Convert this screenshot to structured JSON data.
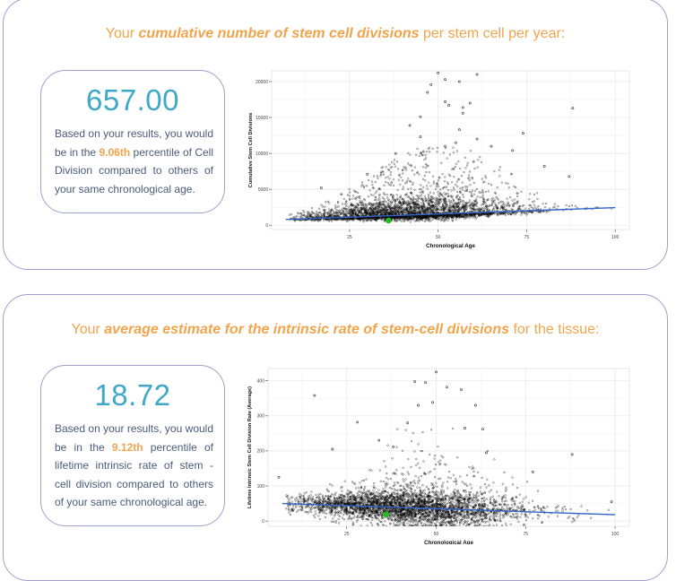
{
  "section1": {
    "heading_pre": "Your ",
    "heading_bold": "cumulative number of stem cell divisions",
    "heading_post": " per stem cell per year:",
    "value": "657.00",
    "text_pre": "Based on your results, you would be in the ",
    "percentile": "9.06th",
    "text_post": " percentile of Cell Division compared to others of your same chronological age."
  },
  "section2": {
    "heading_pre": "Your ",
    "heading_bold": "average estimate for the intrinsic rate of stem-cell divisions",
    "heading_post": " for the tissue:",
    "value": "18.72",
    "text_pre": "Based on your results, you would be in the ",
    "percentile": "9.12th",
    "text_post": " percentile of lifetime intrinsic rate of stem - cell division compared to others of your same chronological age."
  },
  "colors": {
    "accent_orange": "#f0a44c",
    "value_blue": "#3fa8c8",
    "trend_line": "#3366cc",
    "user_point": "#22bb22",
    "border": "#9aa2cc"
  },
  "chart_data": [
    {
      "type": "scatter",
      "title": "",
      "xlabel": "Chronological Age",
      "ylabel": "Cumulative Stem Cell Divisions",
      "xlim": [
        3,
        104
      ],
      "ylim": [
        -600,
        21500
      ],
      "xticks": [
        25,
        50,
        75,
        100
      ],
      "yticks": [
        0,
        5000,
        10000,
        15000,
        20000
      ],
      "grid": true,
      "trend_line": {
        "x": [
          7,
          100
        ],
        "y": [
          800,
          2450
        ]
      },
      "user_point": {
        "x": 36,
        "y": 657
      },
      "outliers": [
        {
          "x": 50,
          "y": 21200
        },
        {
          "x": 61,
          "y": 21000
        },
        {
          "x": 52,
          "y": 20300
        },
        {
          "x": 56,
          "y": 20000
        },
        {
          "x": 48,
          "y": 19600
        },
        {
          "x": 47,
          "y": 18500
        },
        {
          "x": 52,
          "y": 17200
        },
        {
          "x": 53,
          "y": 16700
        },
        {
          "x": 59,
          "y": 17000
        },
        {
          "x": 57,
          "y": 16400
        },
        {
          "x": 88,
          "y": 16300
        },
        {
          "x": 45,
          "y": 15100
        },
        {
          "x": 57,
          "y": 15600
        },
        {
          "x": 42,
          "y": 13900
        },
        {
          "x": 56,
          "y": 13300
        },
        {
          "x": 74,
          "y": 12800
        },
        {
          "x": 61,
          "y": 12000
        },
        {
          "x": 45,
          "y": 12300
        },
        {
          "x": 55,
          "y": 11500
        },
        {
          "x": 65,
          "y": 11000
        },
        {
          "x": 38,
          "y": 10000
        },
        {
          "x": 71,
          "y": 10400
        },
        {
          "x": 52,
          "y": 11000
        },
        {
          "x": 30,
          "y": 7100
        },
        {
          "x": 17,
          "y": 5200
        },
        {
          "x": 80,
          "y": 8200
        },
        {
          "x": 87,
          "y": 6800
        }
      ]
    },
    {
      "type": "scatter",
      "title": "",
      "xlabel": "Chronological Age",
      "ylabel": "Lifetime Intrinsic Stem Cell Division Rate (Average)",
      "xlim": [
        3,
        104
      ],
      "ylim": [
        -15,
        435
      ],
      "xticks": [
        25,
        50,
        75,
        100
      ],
      "yticks": [
        0,
        100,
        200,
        300,
        400
      ],
      "grid": true,
      "trend_line": {
        "x": [
          7,
          100
        ],
        "y": [
          50,
          18
        ]
      },
      "user_point": {
        "x": 36,
        "y": 18.72
      },
      "outliers": [
        {
          "x": 50,
          "y": 425
        },
        {
          "x": 44,
          "y": 398
        },
        {
          "x": 47,
          "y": 395
        },
        {
          "x": 53,
          "y": 382
        },
        {
          "x": 57,
          "y": 375
        },
        {
          "x": 16,
          "y": 358
        },
        {
          "x": 49,
          "y": 338
        },
        {
          "x": 45,
          "y": 330
        },
        {
          "x": 61,
          "y": 330
        },
        {
          "x": 42,
          "y": 280
        },
        {
          "x": 28,
          "y": 282
        },
        {
          "x": 58,
          "y": 265
        },
        {
          "x": 63,
          "y": 262
        },
        {
          "x": 34,
          "y": 230
        },
        {
          "x": 38,
          "y": 212
        },
        {
          "x": 21,
          "y": 205
        },
        {
          "x": 64,
          "y": 195
        },
        {
          "x": 88,
          "y": 190
        },
        {
          "x": 77,
          "y": 140
        },
        {
          "x": 6,
          "y": 125
        },
        {
          "x": 99,
          "y": 55
        }
      ]
    }
  ]
}
